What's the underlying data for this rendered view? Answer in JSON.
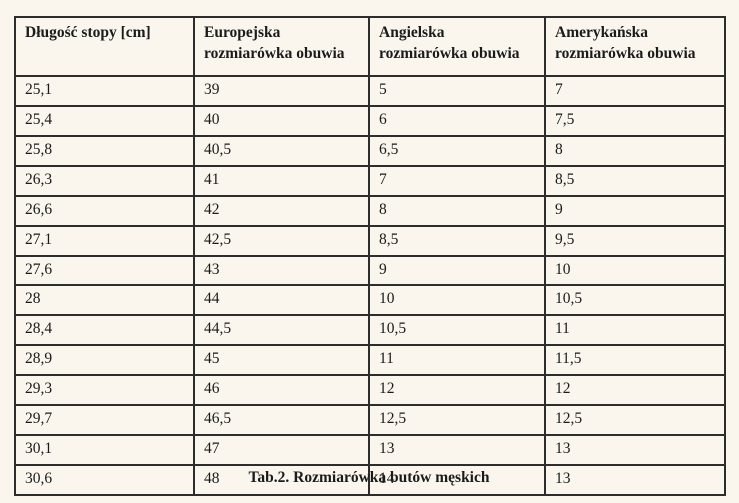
{
  "table": {
    "columns": [
      "Długość stopy [cm]",
      "Europejska rozmiarówka obuwia",
      "Angielska rozmiarówka obuwia",
      "Amerykańska rozmiarówka obuwia"
    ],
    "rows": [
      [
        "25,1",
        "39",
        "5",
        "7"
      ],
      [
        "25,4",
        "40",
        "6",
        "7,5"
      ],
      [
        "25,8",
        "40,5",
        "6,5",
        "8"
      ],
      [
        "26,3",
        "41",
        "7",
        "8,5"
      ],
      [
        "26,6",
        "42",
        "8",
        "9"
      ],
      [
        "27,1",
        "42,5",
        "8,5",
        "9,5"
      ],
      [
        "27,6",
        "43",
        "9",
        "10"
      ],
      [
        "28",
        "44",
        "10",
        "10,5"
      ],
      [
        "28,4",
        "44,5",
        "10,5",
        "11"
      ],
      [
        "28,9",
        "45",
        "11",
        "11,5"
      ],
      [
        "29,3",
        "46",
        "12",
        "12"
      ],
      [
        "29,7",
        "46,5",
        "12,5",
        "12,5"
      ],
      [
        "30,1",
        "47",
        "13",
        "13"
      ],
      [
        "30,6",
        "48",
        "14",
        "13"
      ]
    ]
  },
  "caption": "Tab.2. Rozmiarówka butów męskich",
  "colors": {
    "page_background": "#faf6ee",
    "border": "#2d2d2d",
    "text": "#1b1b1b"
  }
}
